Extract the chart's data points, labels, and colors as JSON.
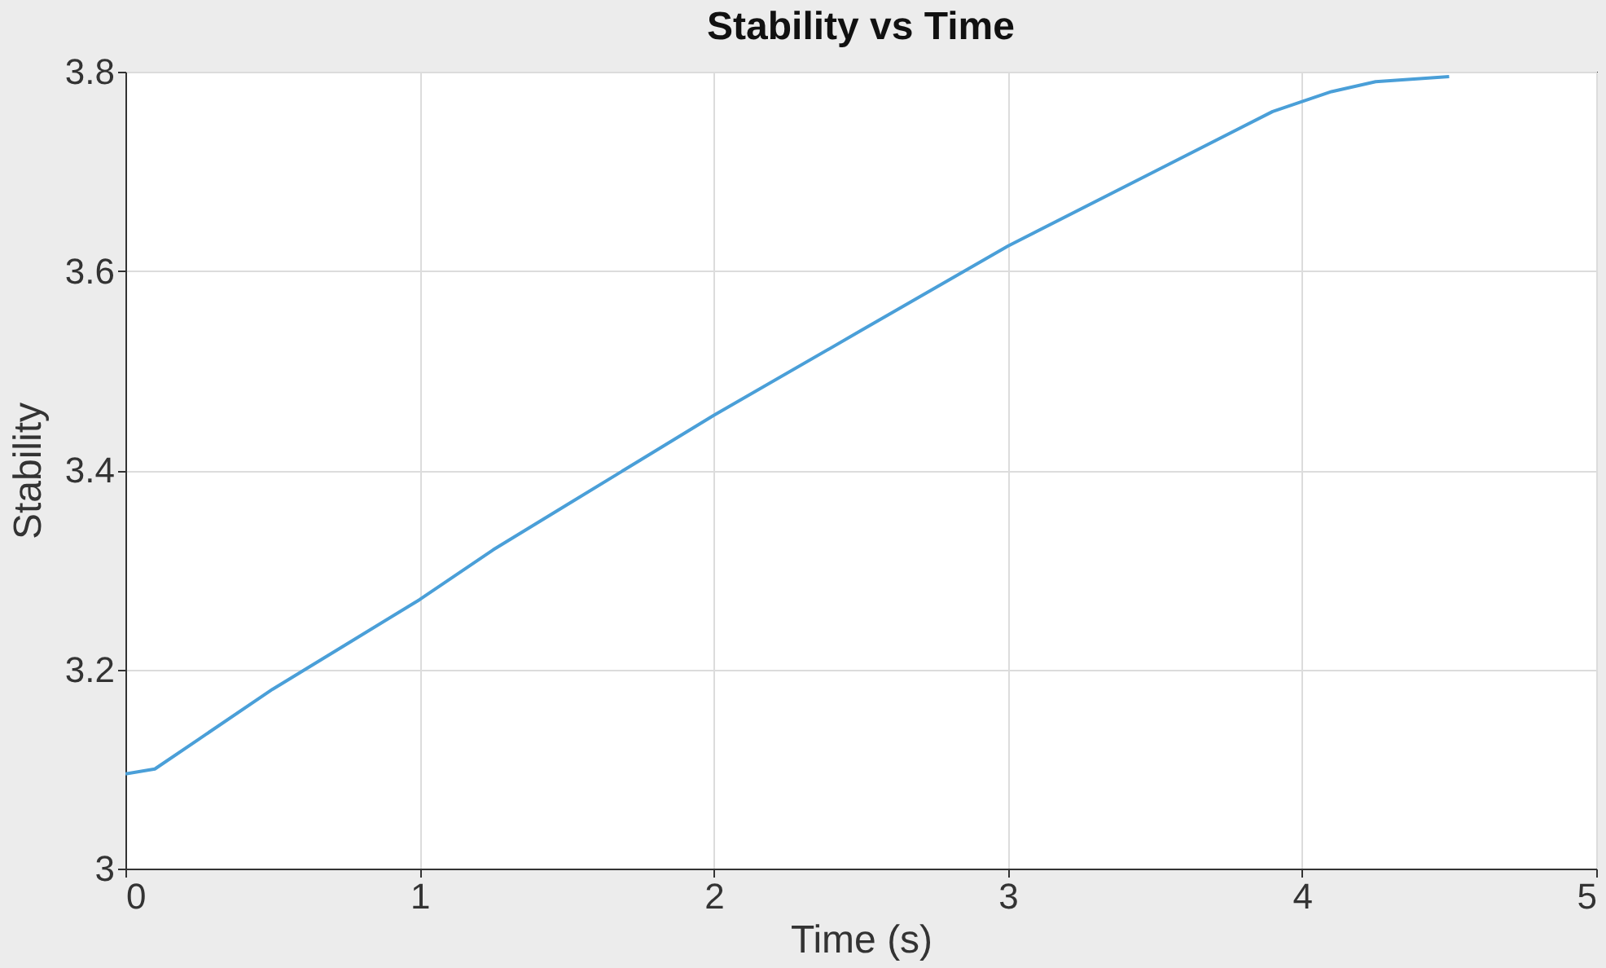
{
  "chart_data": {
    "type": "line",
    "title": "Stability vs Time",
    "xlabel": "Time (s)",
    "ylabel": "Stability",
    "x": [
      0,
      0.1,
      0.25,
      0.5,
      0.75,
      1,
      1.25,
      1.5,
      1.75,
      2,
      2.5,
      3,
      3.5,
      3.9,
      4,
      4.1,
      4.25,
      4.5
    ],
    "series": [
      {
        "color": "#4a9fd8",
        "values": [
          3.095,
          3.1,
          3.13,
          3.18,
          3.225,
          3.27,
          3.32,
          3.365,
          3.41,
          3.455,
          3.54,
          3.625,
          3.7,
          3.76,
          3.77,
          3.78,
          3.79,
          3.795
        ]
      }
    ],
    "xlim": [
      0,
      5
    ],
    "xticks": [
      0,
      1,
      2,
      3,
      4,
      5
    ],
    "ylim": [
      3,
      3.8
    ],
    "yticks": [
      3,
      3.2,
      3.4,
      3.6,
      3.8
    ],
    "grid": true,
    "marker": "none",
    "line_style": "solid"
  }
}
